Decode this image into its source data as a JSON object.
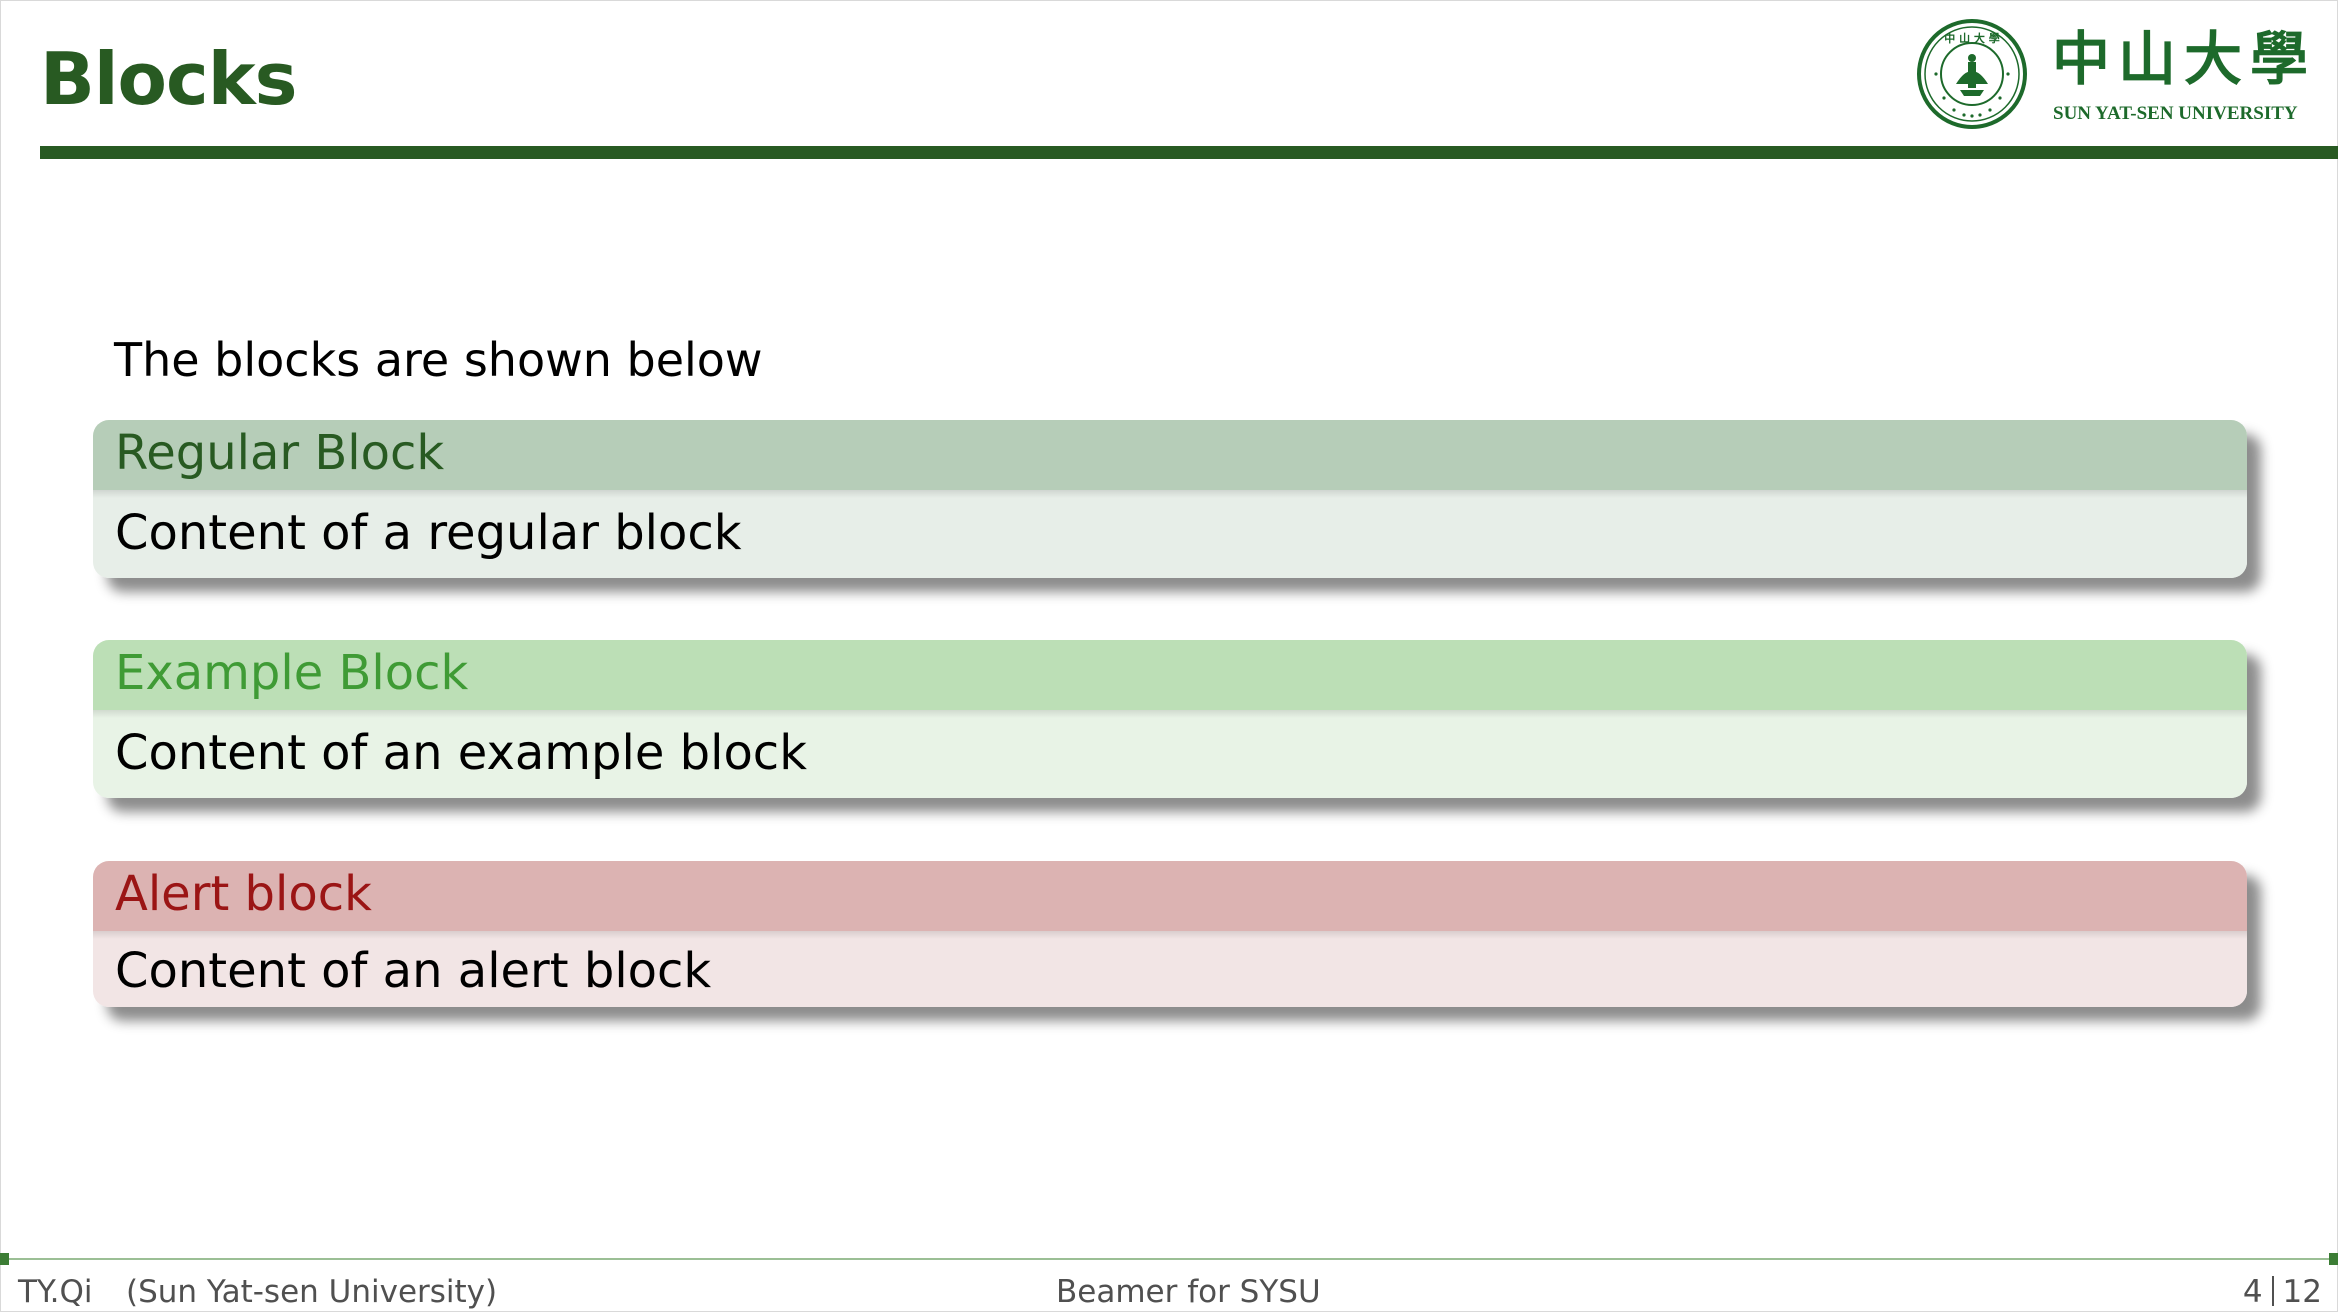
{
  "slide": {
    "title": "Blocks",
    "intro_text": "The blocks are shown below"
  },
  "logo": {
    "chinese_name": "中山大學",
    "english_name": "SUN  YAT-SEN UNIVERSITY",
    "seal_top_chars": "中 山 大 學",
    "seal_ring_text": "SUN YAT-SEN UNIVERSITY"
  },
  "blocks": [
    {
      "kind": "regular",
      "title": "Regular Block",
      "content": "Content of a regular block"
    },
    {
      "kind": "example",
      "title": "Example Block",
      "content": "Content of an example block"
    },
    {
      "kind": "alert",
      "title": "Alert block",
      "content": "Content of an alert block"
    }
  ],
  "footer": {
    "author": "TY.Qi",
    "institution": "(Sun Yat-sen University)",
    "short_title": "Beamer for SYSU",
    "page_current": "4",
    "page_total": "12"
  },
  "colors": {
    "primary_green": "#285a22",
    "logo_green": "#1d6a2b",
    "regular_head_bg": "#b6cdb8",
    "regular_head_fg": "#285a22",
    "regular_body_bg": "#e7eee8",
    "example_head_bg": "#bcdfb6",
    "example_head_fg": "#3f9b35",
    "example_body_bg": "#e8f3e6",
    "alert_head_bg": "#dcb3b2",
    "alert_head_fg": "#9b1515",
    "alert_body_bg": "#f2e5e5",
    "footer_rule": "#9bbf95",
    "footer_marker": "#3c7d35"
  }
}
